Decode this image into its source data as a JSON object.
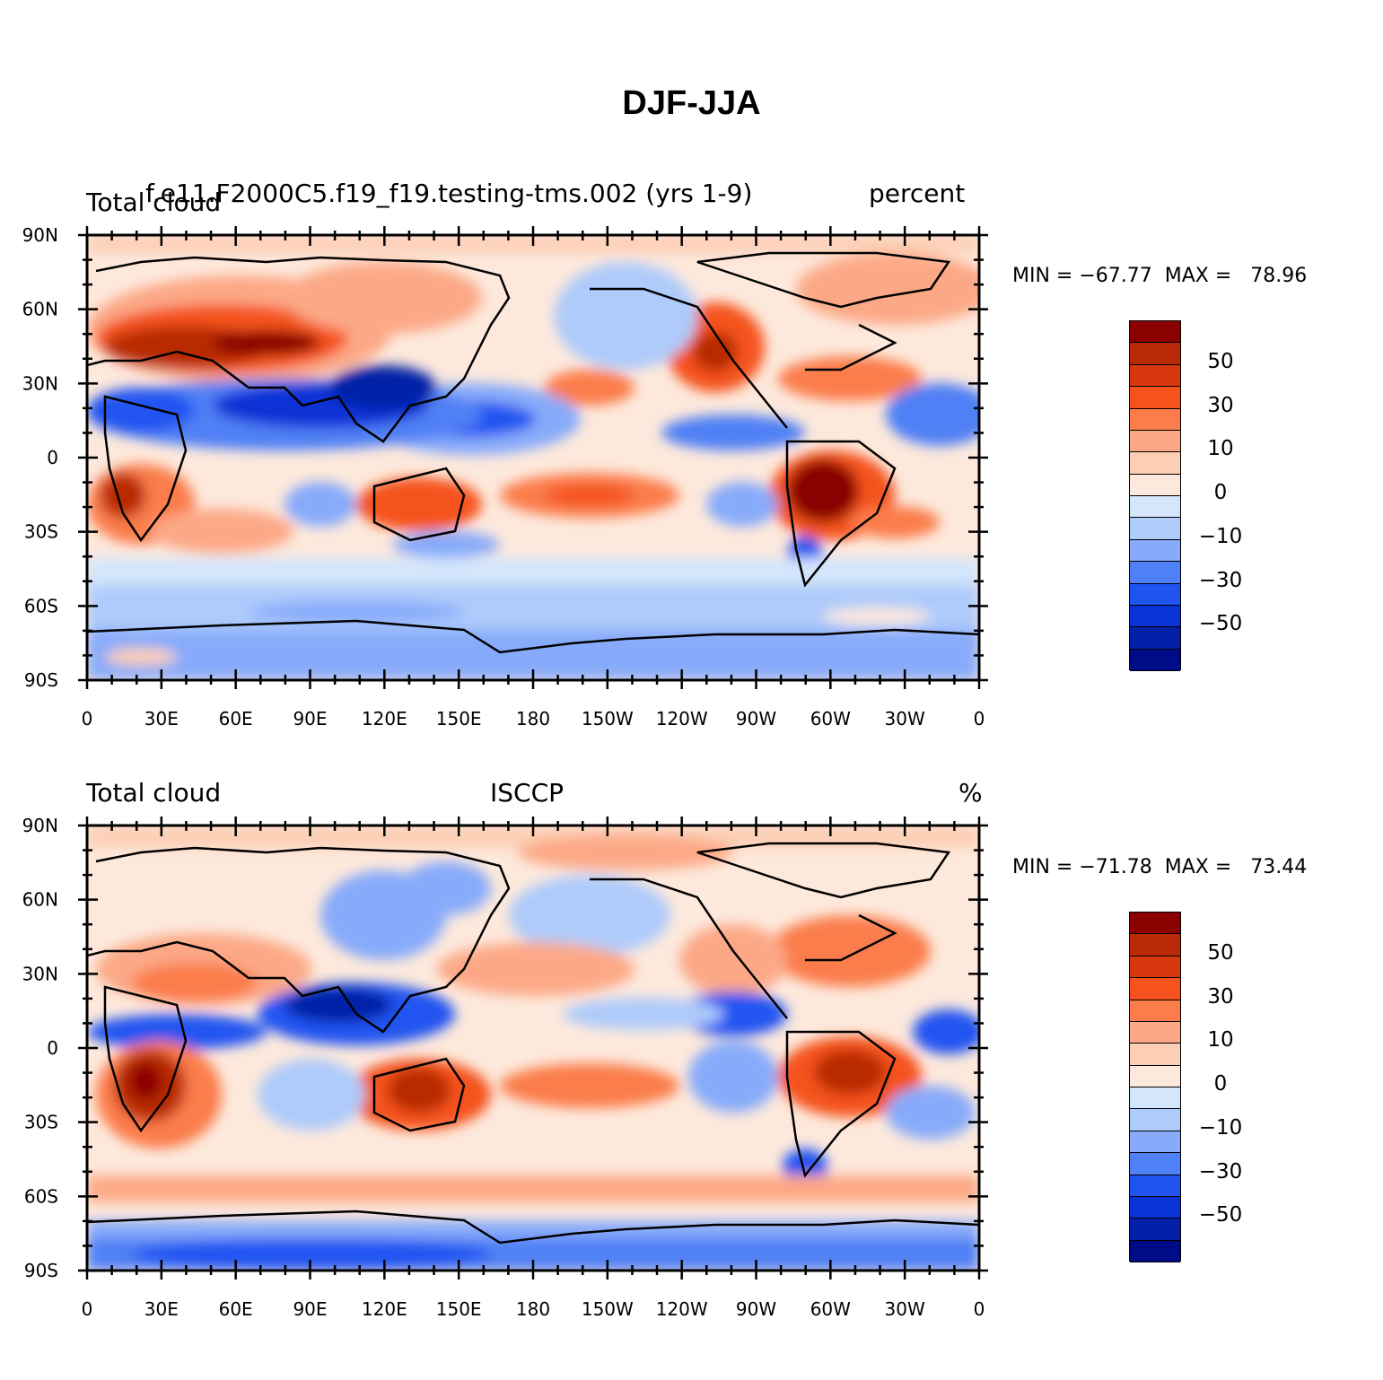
{
  "title": "DJF-JJA",
  "panels": [
    {
      "left_label": "Total cloud",
      "center_label": "f.e11.F2000C5.f19_f19.testing-tms.002 (yrs 1-9)",
      "right_label": "percent",
      "stats": "MIN = −67.77  MAX =   78.96"
    },
    {
      "left_label": "Total cloud",
      "center_label": "ISCCP",
      "right_label": "%",
      "stats": "MIN = −71.78  MAX =   73.44"
    }
  ],
  "axes": {
    "lat_labels": [
      "90N",
      "60N",
      "30N",
      "0",
      "30S",
      "60S",
      "90S"
    ],
    "lon_labels": [
      "0",
      "30E",
      "60E",
      "90E",
      "120E",
      "150E",
      "180",
      "150W",
      "120W",
      "90W",
      "60W",
      "30W",
      "0"
    ]
  },
  "colorbar": {
    "labels": [
      "50",
      "30",
      "10",
      "0",
      "−10",
      "−30",
      "−50"
    ],
    "colors": [
      "#8b0000",
      "#b82a06",
      "#d8380e",
      "#f5521d",
      "#fb7d4b",
      "#fca886",
      "#fccfb5",
      "#fde9dc",
      "#d4e6fc",
      "#aecbfb",
      "#87aafa",
      "#4f80f5",
      "#2054f1",
      "#0a33d6",
      "#0420a8",
      "#000b87"
    ]
  }
}
